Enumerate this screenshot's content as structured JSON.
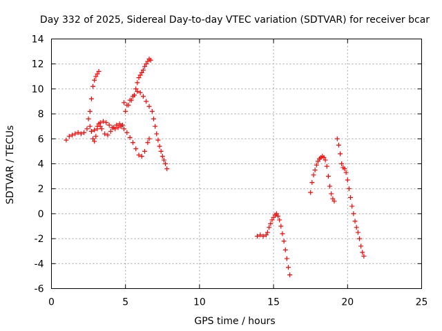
{
  "chart_data": {
    "type": "scatter",
    "title": "Day 332 of 2025, Sidereal Day-to-day VTEC variation (SDTVAR) for receiver bcar",
    "xlabel": "GPS time / hours",
    "ylabel": "SDTVAR / TECUs",
    "xlim": [
      0,
      25
    ],
    "ylim": [
      -6,
      14
    ],
    "xticks": [
      0,
      5,
      10,
      15,
      20,
      25
    ],
    "yticks": [
      -6,
      -4,
      -2,
      0,
      2,
      4,
      6,
      8,
      10,
      12,
      14
    ],
    "grid": true,
    "marker": "plus",
    "color": "#ff0000",
    "series": [
      {
        "points": [
          [
            1.0,
            5.9
          ],
          [
            1.2,
            6.2
          ],
          [
            1.4,
            6.3
          ],
          [
            1.6,
            6.4
          ],
          [
            1.8,
            6.5
          ],
          [
            2.0,
            6.4
          ],
          [
            2.2,
            6.5
          ],
          [
            2.4,
            6.8
          ],
          [
            2.5,
            7.6
          ],
          [
            2.6,
            8.2
          ],
          [
            2.7,
            9.2
          ],
          [
            2.8,
            10.2
          ],
          [
            2.9,
            10.7
          ],
          [
            3.0,
            11.0
          ],
          [
            3.1,
            11.2
          ],
          [
            3.2,
            11.4
          ]
        ]
      },
      {
        "points": [
          [
            2.6,
            7.0
          ],
          [
            2.7,
            6.6
          ],
          [
            2.8,
            6.0
          ],
          [
            2.9,
            5.8
          ],
          [
            3.0,
            6.2
          ],
          [
            3.1,
            6.8
          ],
          [
            3.2,
            7.2
          ],
          [
            3.3,
            7.0
          ],
          [
            3.4,
            6.8
          ],
          [
            3.6,
            6.4
          ],
          [
            3.8,
            6.3
          ],
          [
            4.0,
            6.6
          ],
          [
            4.2,
            6.9
          ],
          [
            4.4,
            7.1
          ],
          [
            4.6,
            7.2
          ],
          [
            4.8,
            7.1
          ]
        ]
      },
      {
        "points": [
          [
            2.7,
            6.6
          ],
          [
            2.9,
            6.7
          ],
          [
            3.1,
            7.0
          ],
          [
            3.3,
            7.3
          ],
          [
            3.5,
            7.4
          ],
          [
            3.7,
            7.3
          ],
          [
            3.9,
            7.1
          ],
          [
            4.1,
            6.9
          ],
          [
            4.3,
            6.8
          ],
          [
            4.5,
            6.9
          ],
          [
            4.7,
            7.0
          ],
          [
            4.9,
            6.8
          ],
          [
            5.1,
            6.5
          ],
          [
            5.3,
            6.1
          ],
          [
            5.5,
            5.7
          ],
          [
            5.7,
            5.2
          ],
          [
            5.9,
            4.7
          ],
          [
            6.1,
            4.6
          ],
          [
            6.3,
            5.0
          ],
          [
            6.5,
            5.7
          ],
          [
            6.6,
            6.0
          ]
        ]
      },
      {
        "points": [
          [
            4.9,
            8.9
          ],
          [
            5.1,
            8.7
          ],
          [
            5.3,
            9.1
          ],
          [
            5.5,
            9.4
          ],
          [
            5.6,
            9.5
          ],
          [
            5.7,
            10.0
          ],
          [
            5.8,
            10.5
          ],
          [
            5.9,
            10.9
          ],
          [
            6.0,
            11.1
          ],
          [
            6.1,
            11.3
          ],
          [
            6.2,
            11.5
          ],
          [
            6.3,
            11.8
          ],
          [
            6.4,
            12.0
          ],
          [
            6.5,
            12.2
          ],
          [
            6.6,
            12.4
          ],
          [
            6.7,
            12.3
          ]
        ]
      },
      {
        "points": [
          [
            5.0,
            8.2
          ],
          [
            5.2,
            8.7
          ],
          [
            5.4,
            9.1
          ],
          [
            5.6,
            9.5
          ],
          [
            5.8,
            9.8
          ],
          [
            6.0,
            9.7
          ],
          [
            6.2,
            9.4
          ],
          [
            6.4,
            9.0
          ],
          [
            6.6,
            8.6
          ],
          [
            6.8,
            8.2
          ],
          [
            6.9,
            7.6
          ],
          [
            7.0,
            7.0
          ],
          [
            7.1,
            6.4
          ],
          [
            7.2,
            5.9
          ],
          [
            7.3,
            5.4
          ],
          [
            7.4,
            5.0
          ],
          [
            7.5,
            4.6
          ],
          [
            7.6,
            4.3
          ],
          [
            7.7,
            4.0
          ],
          [
            7.8,
            3.6
          ]
        ]
      },
      {
        "points": [
          [
            13.9,
            -1.8
          ],
          [
            14.1,
            -1.7
          ],
          [
            14.3,
            -1.8
          ],
          [
            14.5,
            -1.7
          ],
          [
            14.6,
            -1.5
          ],
          [
            14.7,
            -1.1
          ],
          [
            14.8,
            -0.8
          ],
          [
            14.9,
            -0.5
          ],
          [
            15.0,
            -0.3
          ],
          [
            15.1,
            -0.1
          ],
          [
            15.2,
            0.0
          ],
          [
            15.3,
            -0.2
          ],
          [
            15.4,
            -0.5
          ],
          [
            15.5,
            -1.0
          ],
          [
            15.6,
            -1.6
          ],
          [
            15.7,
            -2.2
          ],
          [
            15.8,
            -2.9
          ],
          [
            15.9,
            -3.6
          ],
          [
            16.0,
            -4.3
          ],
          [
            16.1,
            -4.9
          ]
        ]
      },
      {
        "points": [
          [
            17.5,
            1.7
          ],
          [
            17.6,
            2.5
          ],
          [
            17.7,
            3.1
          ],
          [
            17.8,
            3.5
          ],
          [
            17.9,
            3.9
          ],
          [
            18.0,
            4.2
          ],
          [
            18.1,
            4.4
          ],
          [
            18.2,
            4.5
          ],
          [
            18.3,
            4.6
          ],
          [
            18.4,
            4.5
          ],
          [
            18.5,
            4.3
          ],
          [
            18.6,
            3.8
          ],
          [
            18.7,
            3.0
          ],
          [
            18.8,
            2.2
          ],
          [
            18.9,
            1.6
          ],
          [
            19.0,
            1.2
          ],
          [
            19.1,
            1.0
          ]
        ]
      },
      {
        "points": [
          [
            19.3,
            6.0
          ],
          [
            19.4,
            5.5
          ],
          [
            19.5,
            4.8
          ],
          [
            19.6,
            4.0
          ],
          [
            19.7,
            3.7
          ],
          [
            19.8,
            3.6
          ],
          [
            19.9,
            3.3
          ],
          [
            20.0,
            2.7
          ],
          [
            20.1,
            2.0
          ],
          [
            20.2,
            1.3
          ],
          [
            20.3,
            0.6
          ],
          [
            20.4,
            0.0
          ],
          [
            20.5,
            -0.6
          ],
          [
            20.6,
            -1.1
          ],
          [
            20.7,
            -1.5
          ],
          [
            20.8,
            -2.0
          ],
          [
            20.9,
            -2.6
          ],
          [
            21.0,
            -3.1
          ],
          [
            21.1,
            -3.4
          ]
        ]
      }
    ]
  }
}
